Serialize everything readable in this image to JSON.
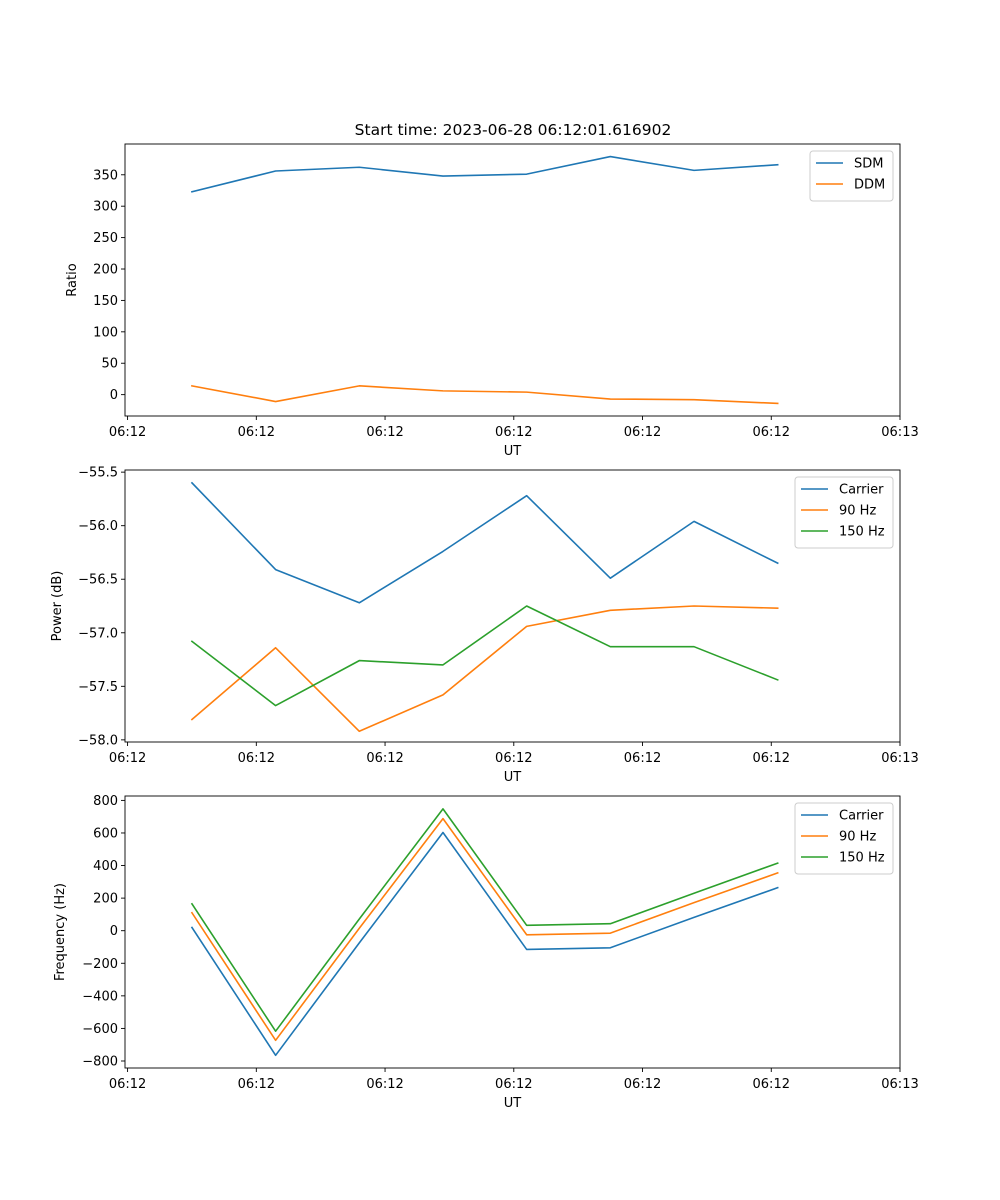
{
  "figure": {
    "title": "Start time: 2023-06-28 06:12:01.616902"
  },
  "colors": {
    "blue": "#1f77b4",
    "orange": "#ff7f0e",
    "green": "#2ca02c"
  },
  "chart_data": [
    {
      "type": "line",
      "title": "Start time: 2023-06-28 06:12:01.616902",
      "xlabel": "UT",
      "ylabel": "Ratio",
      "x_point_positions": [
        0.5,
        1.15,
        1.8,
        2.45,
        3.1,
        3.75,
        4.4,
        5.05
      ],
      "xlim": [
        -0.02,
        6.0
      ],
      "xticks": [
        0,
        1,
        2,
        3,
        4,
        5,
        6
      ],
      "xtick_labels": [
        "06:12",
        "06:12",
        "06:12",
        "06:12",
        "06:12",
        "06:12",
        "06:13"
      ],
      "ylim": [
        -34,
        399
      ],
      "yticks": [
        0,
        50,
        100,
        150,
        200,
        250,
        300,
        350
      ],
      "ytick_labels": [
        "0",
        "50",
        "100",
        "150",
        "200",
        "250",
        "300",
        "350"
      ],
      "legend": "top-right",
      "series": [
        {
          "name": "SDM",
          "color": "#1f77b4",
          "values": [
            323,
            356,
            362,
            348,
            351,
            379,
            357,
            366
          ]
        },
        {
          "name": "DDM",
          "color": "#ff7f0e",
          "values": [
            14,
            -11,
            14,
            6,
            4,
            -7,
            -8,
            -14
          ]
        }
      ]
    },
    {
      "type": "line",
      "title": "",
      "xlabel": "UT",
      "ylabel": "Power (dB)",
      "x_point_positions": [
        0.5,
        1.15,
        1.8,
        2.45,
        3.1,
        3.75,
        4.4,
        5.05
      ],
      "xlim": [
        -0.02,
        6.0
      ],
      "xticks": [
        0,
        1,
        2,
        3,
        4,
        5,
        6
      ],
      "xtick_labels": [
        "06:12",
        "06:12",
        "06:12",
        "06:12",
        "06:12",
        "06:12",
        "06:13"
      ],
      "ylim": [
        -58.02,
        -55.48
      ],
      "yticks": [
        -58.0,
        -57.5,
        -57.0,
        -56.5,
        -56.0,
        -55.5
      ],
      "ytick_labels": [
        "−58.0",
        "−57.5",
        "−57.0",
        "−56.5",
        "−56.0",
        "−55.5"
      ],
      "legend": "top-right",
      "series": [
        {
          "name": "Carrier",
          "color": "#1f77b4",
          "values": [
            -55.6,
            -56.41,
            -56.72,
            -56.24,
            -55.72,
            -56.49,
            -55.96,
            -56.35
          ]
        },
        {
          "name": "90 Hz",
          "color": "#ff7f0e",
          "values": [
            -57.81,
            -57.14,
            -57.92,
            -57.58,
            -56.94,
            -56.79,
            -56.75,
            -56.77
          ]
        },
        {
          "name": "150 Hz",
          "color": "#2ca02c",
          "values": [
            -57.08,
            -57.68,
            -57.26,
            -57.3,
            -56.75,
            -57.13,
            -57.13,
            -57.44
          ]
        }
      ]
    },
    {
      "type": "line",
      "title": "",
      "xlabel": "UT",
      "ylabel": "Frequency (Hz)",
      "x_point_positions": [
        0.5,
        1.15,
        1.8,
        2.45,
        3.1,
        3.75,
        4.4,
        5.05
      ],
      "xlim": [
        -0.02,
        6.0
      ],
      "xticks": [
        0,
        1,
        2,
        3,
        4,
        5,
        6
      ],
      "xtick_labels": [
        "06:12",
        "06:12",
        "06:12",
        "06:12",
        "06:12",
        "06:12",
        "06:13"
      ],
      "ylim": [
        -843,
        827
      ],
      "yticks": [
        -800,
        -600,
        -400,
        -200,
        0,
        200,
        400,
        600,
        800
      ],
      "ytick_labels": [
        "−800",
        "−600",
        "−400",
        "−200",
        "0",
        "200",
        "400",
        "600",
        "800"
      ],
      "legend": "top-right",
      "series": [
        {
          "name": "Carrier",
          "color": "#1f77b4",
          "values": [
            20,
            -765,
            -75,
            603,
            -115,
            -105,
            82,
            264
          ]
        },
        {
          "name": "90 Hz",
          "color": "#ff7f0e",
          "values": [
            110,
            -673,
            15,
            688,
            -25,
            -15,
            172,
            355
          ]
        },
        {
          "name": "150 Hz",
          "color": "#2ca02c",
          "values": [
            165,
            -617,
            72,
            748,
            33,
            43,
            230,
            415
          ]
        }
      ]
    }
  ]
}
